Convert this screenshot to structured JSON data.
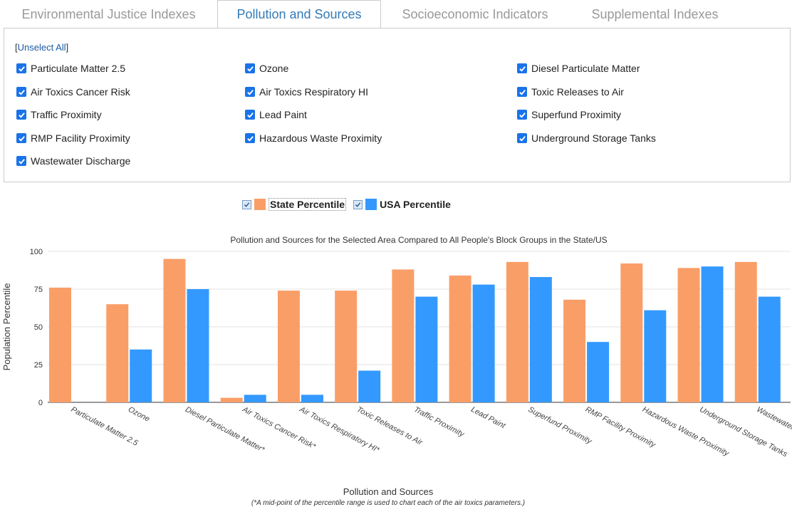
{
  "tabs": [
    {
      "label": "Environmental Justice Indexes",
      "active": false
    },
    {
      "label": "Pollution and Sources",
      "active": true
    },
    {
      "label": "Socioeconomic Indicators",
      "active": false
    },
    {
      "label": "Supplemental Indexes",
      "active": false
    }
  ],
  "panel": {
    "unselect_bracket_open": "[",
    "unselect_label": "Unselect All",
    "unselect_bracket_close": "]",
    "checkboxes": [
      {
        "label": "Particulate Matter 2.5",
        "checked": true
      },
      {
        "label": "Ozone",
        "checked": true
      },
      {
        "label": "Diesel Particulate Matter",
        "checked": true
      },
      {
        "label": "Air Toxics Cancer Risk",
        "checked": true
      },
      {
        "label": "Air Toxics Respiratory HI",
        "checked": true
      },
      {
        "label": "Toxic Releases to Air",
        "checked": true
      },
      {
        "label": "Traffic Proximity",
        "checked": true
      },
      {
        "label": "Lead Paint",
        "checked": true
      },
      {
        "label": "Superfund Proximity",
        "checked": true
      },
      {
        "label": "RMP Facility Proximity",
        "checked": true
      },
      {
        "label": "Hazardous Waste Proximity",
        "checked": true
      },
      {
        "label": "Underground Storage Tanks",
        "checked": true
      },
      {
        "label": "Wastewater Discharge",
        "checked": true
      }
    ]
  },
  "colors": {
    "state": "#fa9e68",
    "usa": "#3399ff"
  },
  "chart_data": {
    "type": "bar",
    "title": "Pollution and Sources for the Selected Area Compared to All People's Block Groups in the State/US",
    "xlabel": "Pollution and Sources",
    "footnote": "(*A mid-point of the percentile range is used to chart each of the air toxics parameters.)",
    "ylabel": "Population Percentile",
    "ylim": [
      0,
      100
    ],
    "yticks": [
      0,
      25,
      50,
      75,
      100
    ],
    "grid": true,
    "legend_position": "top-center",
    "categories": [
      "Particulate Matter 2.5",
      "Ozone",
      "Diesel Particulate Matter*",
      "Air Toxics Cancer Risk*",
      "Air Toxics Respiratory HI*",
      "Toxic Releases to Air",
      "Traffic Proximity",
      "Lead Paint",
      "Superfund Proximity",
      "RMP Facility Proximity",
      "Hazardous Waste Proximity",
      "Underground Storage Tanks",
      "Wastewater Discharge"
    ],
    "series": [
      {
        "name": "State Percentile",
        "checked": true,
        "values": [
          76,
          65,
          95,
          3,
          74,
          74,
          88,
          84,
          93,
          68,
          92,
          89,
          93
        ]
      },
      {
        "name": "USA Percentile",
        "checked": true,
        "values": [
          0,
          35,
          75,
          5,
          5,
          21,
          70,
          78,
          83,
          40,
          61,
          90,
          70
        ]
      }
    ]
  }
}
